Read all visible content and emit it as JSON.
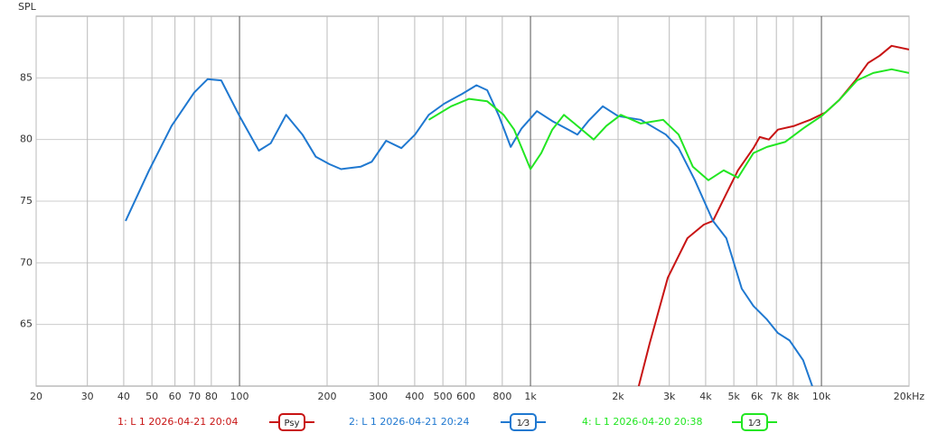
{
  "chart_data": {
    "type": "line",
    "log_x": true,
    "grid": true,
    "y_label": "SPL",
    "xlim": [
      20,
      20000
    ],
    "ylim": [
      60,
      90
    ],
    "xticks": [
      20,
      30,
      40,
      50,
      60,
      70,
      80,
      100,
      200,
      300,
      400,
      500,
      600,
      800,
      {
        "value": 1000,
        "label": "1k"
      },
      {
        "value": 2000,
        "label": "2k"
      },
      {
        "value": 3000,
        "label": "3k"
      },
      {
        "value": 4000,
        "label": "4k"
      },
      {
        "value": 5000,
        "label": "5k"
      },
      {
        "value": 6000,
        "label": "6k"
      },
      {
        "value": 7000,
        "label": "7k"
      },
      {
        "value": 8000,
        "label": "8k"
      },
      {
        "value": 10000,
        "label": "10k"
      },
      {
        "value": 20000,
        "label": "20kHz"
      }
    ],
    "yticks": [
      65,
      70,
      75,
      80,
      85
    ],
    "series": [
      {
        "name": "1: L 1 2026-04-21 20:04",
        "smoothing": "Psy",
        "color": "#c81414",
        "x": [
          2356,
          2570,
          2965,
          3464,
          3942,
          4237,
          4711,
          5167,
          5837,
          6136,
          6597,
          7085,
          8057,
          9151,
          10330,
          11510,
          13090,
          14460,
          15860,
          17420,
          20000
        ],
        "values": [
          60.0,
          63.5,
          68.8,
          72.0,
          73.1,
          73.4,
          75.6,
          77.5,
          79.3,
          80.2,
          80.0,
          80.8,
          81.1,
          81.6,
          82.2,
          83.2,
          84.8,
          86.2,
          86.8,
          87.6,
          87.3
        ]
      },
      {
        "name": "2: L 1 2026-04-21 20:24",
        "smoothing": "1⁄3",
        "color": "#1f78d0",
        "x": [
          40.6,
          48.9,
          58.4,
          69.8,
          77.7,
          86.5,
          100,
          116.6,
          128,
          144.6,
          164.5,
          182.9,
          203.7,
          223.5,
          261.4,
          284.7,
          319,
          360,
          401,
          447,
          505,
          582,
          652,
          710,
          780,
          855,
          932,
          1052,
          1188,
          1350,
          1450,
          1581,
          1772,
          2000,
          2393,
          2919,
          3229,
          3672,
          4237,
          4711,
          5322,
          5837,
          6500,
          7085,
          7772,
          8650,
          9300
        ],
        "values": [
          73.4,
          77.5,
          81.1,
          83.8,
          84.9,
          84.8,
          81.9,
          79.1,
          79.7,
          82.0,
          80.4,
          78.6,
          78.0,
          77.6,
          77.8,
          78.2,
          79.9,
          79.3,
          80.4,
          82.0,
          82.9,
          83.7,
          84.4,
          84.0,
          81.9,
          79.4,
          80.9,
          82.3,
          81.5,
          80.8,
          80.4,
          81.5,
          82.7,
          81.9,
          81.6,
          80.4,
          79.3,
          76.7,
          73.4,
          72.0,
          67.9,
          66.5,
          65.4,
          64.3,
          63.7,
          62.1,
          60.0
        ]
      },
      {
        "name": "4: L 1 2026-04-20 20:38",
        "smoothing": "1⁄3",
        "color": "#22e622",
        "x": [
          447,
          534,
          615,
          710,
          808,
          879,
          1000,
          1089,
          1188,
          1303,
          1450,
          1649,
          1823,
          2043,
          2393,
          2858,
          3229,
          3614,
          4085,
          4614,
          5167,
          5837,
          6500,
          7500,
          8650,
          10000,
          11510,
          13260,
          15070,
          17420,
          20000
        ],
        "values": [
          81.6,
          82.7,
          83.3,
          83.1,
          82.0,
          80.8,
          77.6,
          78.9,
          80.8,
          82.0,
          81.1,
          80.0,
          81.1,
          82.0,
          81.3,
          81.6,
          80.4,
          77.8,
          76.7,
          77.5,
          76.9,
          78.9,
          79.4,
          79.8,
          80.9,
          81.9,
          83.2,
          84.8,
          85.4,
          85.7,
          85.4
        ]
      }
    ]
  }
}
